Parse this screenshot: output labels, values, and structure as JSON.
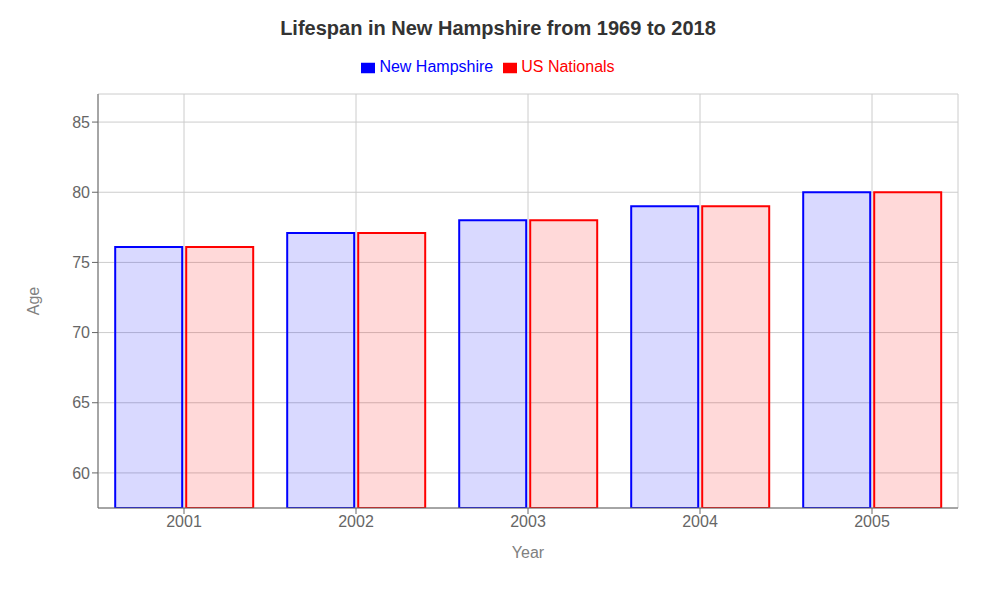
{
  "chart_data": {
    "type": "bar",
    "title": "Lifespan in New Hampshire from 1969 to 2018",
    "x_label": "Year",
    "y_label": "Age",
    "categories": [
      "2001",
      "2002",
      "2003",
      "2004",
      "2005"
    ],
    "series": [
      {
        "name": "New Hampshire",
        "color": "#0000ff",
        "values": [
          76.1,
          77.1,
          78.0,
          79.0,
          80.0
        ]
      },
      {
        "name": "US Nationals",
        "color": "#ff0000",
        "values": [
          76.1,
          77.1,
          78.0,
          79.0,
          80.0
        ]
      }
    ],
    "ylim": [
      57.5,
      87
    ],
    "yticks": [
      60,
      65,
      70,
      75,
      80,
      85
    ],
    "grid": true,
    "legend": "top"
  }
}
